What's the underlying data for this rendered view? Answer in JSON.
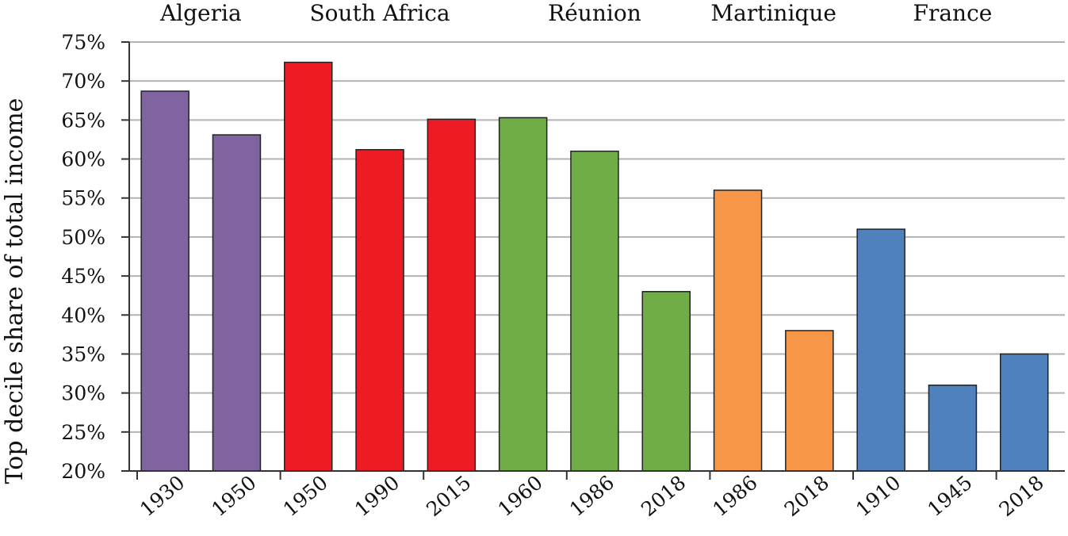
{
  "chart_data": {
    "type": "bar",
    "ylabel": "Top decile share of total income",
    "ylim": [
      20,
      75
    ],
    "y_tick_step": 5,
    "y_ticks": [
      "20%",
      "25%",
      "30%",
      "35%",
      "40%",
      "45%",
      "50%",
      "55%",
      "60%",
      "65%",
      "70%",
      "75%"
    ],
    "grid": true,
    "groups": [
      {
        "name": "Algeria",
        "color": "#8064A2",
        "bars": [
          {
            "year": "1930",
            "value": 68.7
          },
          {
            "year": "1950",
            "value": 63.1
          }
        ]
      },
      {
        "name": "South Africa",
        "color": "#ED1C24",
        "bars": [
          {
            "year": "1950",
            "value": 72.4
          },
          {
            "year": "1990",
            "value": 61.2
          },
          {
            "year": "2015",
            "value": 65.1
          }
        ]
      },
      {
        "name": "Réunion",
        "color": "#70AD47",
        "bars": [
          {
            "year": "1960",
            "value": 65.3
          },
          {
            "year": "1986",
            "value": 61.0
          },
          {
            "year": "2018",
            "value": 43.0
          }
        ]
      },
      {
        "name": "Martinique",
        "color": "#F79646",
        "bars": [
          {
            "year": "1986",
            "value": 56.0
          },
          {
            "year": "2018",
            "value": 38.0
          }
        ]
      },
      {
        "name": "France",
        "color": "#4F81BD",
        "bars": [
          {
            "year": "1910",
            "value": 51.0
          },
          {
            "year": "1945",
            "value": 31.0
          },
          {
            "year": "2018",
            "value": 35.0
          }
        ]
      }
    ]
  }
}
